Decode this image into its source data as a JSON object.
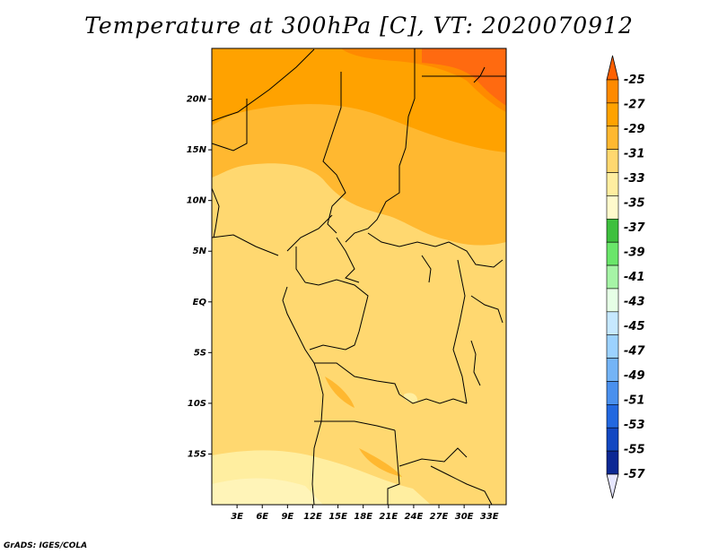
{
  "title": "Temperature at 300hPa [C], VT: 2020070912",
  "credit": "GrADS: IGES/COLA",
  "map": {
    "lon_range": [
      0,
      35
    ],
    "lat_range": [
      -20,
      25
    ],
    "lon_labels": [
      {
        "lon": 3,
        "text": "3E"
      },
      {
        "lon": 6,
        "text": "6E"
      },
      {
        "lon": 9,
        "text": "9E"
      },
      {
        "lon": 12,
        "text": "12E"
      },
      {
        "lon": 15,
        "text": "15E"
      },
      {
        "lon": 18,
        "text": "18E"
      },
      {
        "lon": 21,
        "text": "21E"
      },
      {
        "lon": 24,
        "text": "24E"
      },
      {
        "lon": 27,
        "text": "27E"
      },
      {
        "lon": 30,
        "text": "30E"
      },
      {
        "lon": 33,
        "text": "33E"
      }
    ],
    "lat_labels": [
      {
        "lat": 20,
        "text": "20N"
      },
      {
        "lat": 15,
        "text": "15N"
      },
      {
        "lat": 10,
        "text": "10N"
      },
      {
        "lat": 5,
        "text": "5N"
      },
      {
        "lat": 0,
        "text": "EQ"
      },
      {
        "lat": -5,
        "text": "5S"
      },
      {
        "lat": -10,
        "text": "10S"
      },
      {
        "lat": -15,
        "text": "15S"
      }
    ]
  },
  "colorbar": {
    "labels": [
      "-25",
      "-27",
      "-29",
      "-31",
      "-33",
      "-35",
      "-37",
      "-39",
      "-41",
      "-43",
      "-45",
      "-47",
      "-49",
      "-51",
      "-53",
      "-55",
      "-57"
    ],
    "colors": [
      "#ff6000",
      "#ff8a00",
      "#ffa200",
      "#ffb830",
      "#ffd870",
      "#ffeea0",
      "#fffacc",
      "#3ec03e",
      "#6ae66a",
      "#a6f4a6",
      "#e6ffe6",
      "#c6e8ff",
      "#9cd2ff",
      "#74b4f6",
      "#4a90ee",
      "#2268e0",
      "#1248c2",
      "#0c2894",
      "#0a0a6a"
    ]
  }
}
